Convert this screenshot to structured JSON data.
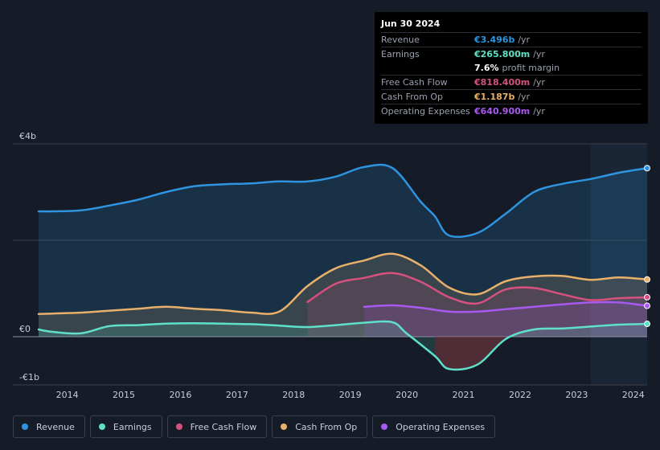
{
  "tooltip": {
    "date": "Jun 30 2024",
    "rows": [
      {
        "label": "Revenue",
        "value": "€3.496b",
        "unit": "/yr",
        "color": "#2f94e0"
      },
      {
        "label": "Earnings",
        "value": "€265.800m",
        "unit": "/yr",
        "color": "#5fe0c9"
      },
      {
        "label": "",
        "value": "7.6%",
        "unit": "profit margin",
        "color": "#ffffff"
      },
      {
        "label": "Free Cash Flow",
        "value": "€818.400m",
        "unit": "/yr",
        "color": "#d6517f"
      },
      {
        "label": "Cash From Op",
        "value": "€1.187b",
        "unit": "/yr",
        "color": "#e8b06a"
      },
      {
        "label": "Operating Expenses",
        "value": "€640.900m",
        "unit": "/yr",
        "color": "#a759f0"
      }
    ]
  },
  "legend": [
    {
      "label": "Revenue",
      "color": "#2f94e0"
    },
    {
      "label": "Earnings",
      "color": "#5fe0c9"
    },
    {
      "label": "Free Cash Flow",
      "color": "#d6517f"
    },
    {
      "label": "Cash From Op",
      "color": "#e8b06a"
    },
    {
      "label": "Operating Expenses",
      "color": "#a759f0"
    }
  ],
  "chart_data": {
    "type": "area",
    "title": "",
    "xlabel": "",
    "ylabel": "",
    "ylim": [
      -1.0,
      4.0
    ],
    "xlim": [
      2013.75,
      2024.5
    ],
    "y_tick_labels": [
      {
        "value": 4,
        "label": "€4b"
      },
      {
        "value": 0,
        "label": "€0"
      },
      {
        "value": -1,
        "label": "-€1b"
      }
    ],
    "x_tick_labels": [
      "2014",
      "2015",
      "2016",
      "2017",
      "2018",
      "2019",
      "2020",
      "2021",
      "2022",
      "2023",
      "2024"
    ],
    "x_ticks": [
      2014,
      2015,
      2016,
      2017,
      2018,
      2019,
      2020,
      2021,
      2022,
      2023,
      2024
    ],
    "forecast_start": 2023.5,
    "series": [
      {
        "name": "Revenue",
        "color": "#2f94e0",
        "points": [
          [
            2013.75,
            2.6
          ],
          [
            2014,
            2.6
          ],
          [
            2014.5,
            2.62
          ],
          [
            2015,
            2.72
          ],
          [
            2015.5,
            2.84
          ],
          [
            2016,
            3.0
          ],
          [
            2016.5,
            3.12
          ],
          [
            2017,
            3.16
          ],
          [
            2017.5,
            3.18
          ],
          [
            2018,
            3.22
          ],
          [
            2018.5,
            3.22
          ],
          [
            2019,
            3.32
          ],
          [
            2019.5,
            3.52
          ],
          [
            2020,
            3.5
          ],
          [
            2020.5,
            2.8
          ],
          [
            2020.75,
            2.5
          ],
          [
            2021,
            2.1
          ],
          [
            2021.5,
            2.15
          ],
          [
            2022,
            2.55
          ],
          [
            2022.5,
            3.0
          ],
          [
            2023,
            3.17
          ],
          [
            2023.5,
            3.27
          ],
          [
            2024,
            3.4
          ],
          [
            2024.5,
            3.496
          ]
        ]
      },
      {
        "name": "Cash From Op",
        "color": "#e8b06a",
        "points": [
          [
            2013.75,
            0.47
          ],
          [
            2014,
            0.48
          ],
          [
            2014.5,
            0.5
          ],
          [
            2015,
            0.54
          ],
          [
            2015.5,
            0.58
          ],
          [
            2016,
            0.62
          ],
          [
            2016.5,
            0.58
          ],
          [
            2017,
            0.55
          ],
          [
            2017.5,
            0.5
          ],
          [
            2018,
            0.52
          ],
          [
            2018.5,
            1.05
          ],
          [
            2019,
            1.42
          ],
          [
            2019.5,
            1.58
          ],
          [
            2020,
            1.72
          ],
          [
            2020.5,
            1.48
          ],
          [
            2021,
            1.02
          ],
          [
            2021.5,
            0.88
          ],
          [
            2022,
            1.15
          ],
          [
            2022.5,
            1.25
          ],
          [
            2023,
            1.26
          ],
          [
            2023.5,
            1.18
          ],
          [
            2024,
            1.23
          ],
          [
            2024.5,
            1.187
          ]
        ]
      },
      {
        "name": "Free Cash Flow",
        "color": "#d6517f",
        "points": [
          [
            2018.5,
            0.72
          ],
          [
            2019,
            1.1
          ],
          [
            2019.5,
            1.22
          ],
          [
            2020,
            1.32
          ],
          [
            2020.5,
            1.14
          ],
          [
            2021,
            0.82
          ],
          [
            2021.5,
            0.69
          ],
          [
            2022,
            0.98
          ],
          [
            2022.5,
            1.01
          ],
          [
            2023,
            0.88
          ],
          [
            2023.5,
            0.76
          ],
          [
            2024,
            0.8
          ],
          [
            2024.5,
            0.8184
          ]
        ]
      },
      {
        "name": "Operating Expenses",
        "color": "#a759f0",
        "points": [
          [
            2019.5,
            0.62
          ],
          [
            2020,
            0.65
          ],
          [
            2020.5,
            0.6
          ],
          [
            2021,
            0.52
          ],
          [
            2021.5,
            0.52
          ],
          [
            2022,
            0.57
          ],
          [
            2022.5,
            0.62
          ],
          [
            2023,
            0.67
          ],
          [
            2023.5,
            0.71
          ],
          [
            2024,
            0.71
          ],
          [
            2024.5,
            0.6409
          ]
        ]
      },
      {
        "name": "Earnings",
        "color": "#5fe0c9",
        "points": [
          [
            2013.75,
            0.15
          ],
          [
            2014,
            0.1
          ],
          [
            2014.5,
            0.07
          ],
          [
            2015,
            0.22
          ],
          [
            2015.5,
            0.24
          ],
          [
            2016,
            0.27
          ],
          [
            2016.5,
            0.28
          ],
          [
            2017,
            0.27
          ],
          [
            2017.5,
            0.26
          ],
          [
            2018,
            0.23
          ],
          [
            2018.5,
            0.2
          ],
          [
            2019,
            0.24
          ],
          [
            2019.5,
            0.29
          ],
          [
            2020,
            0.3
          ],
          [
            2020.25,
            0.07
          ],
          [
            2020.75,
            -0.4
          ],
          [
            2021,
            -0.67
          ],
          [
            2021.5,
            -0.58
          ],
          [
            2022,
            -0.05
          ],
          [
            2022.5,
            0.15
          ],
          [
            2023,
            0.17
          ],
          [
            2023.5,
            0.21
          ],
          [
            2024,
            0.25
          ],
          [
            2024.5,
            0.2658
          ]
        ]
      }
    ]
  }
}
